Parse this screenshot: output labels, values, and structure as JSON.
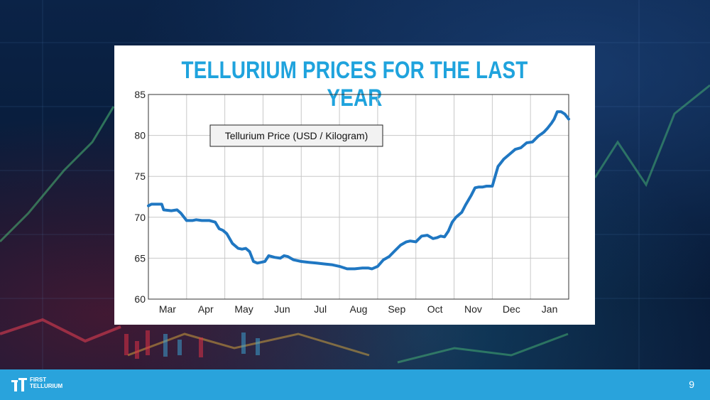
{
  "slide": {
    "title": "TELLURIUM PRICES FOR THE LAST YEAR",
    "page_number": "9",
    "logo": {
      "line1": "FIRST",
      "line2": "TELLURIUM"
    }
  },
  "colors": {
    "title": "#1fa3dd",
    "series": "#1f77c2",
    "footer": "#29a3dc",
    "grid": "#c8c8c8"
  },
  "chart_data": {
    "type": "line",
    "title": "",
    "xlabel": "",
    "ylabel": "",
    "ylim": [
      60,
      85
    ],
    "yticks": [
      60,
      65,
      70,
      75,
      80,
      85
    ],
    "xlim": [
      0,
      11
    ],
    "categories": [
      "Mar",
      "Apr",
      "May",
      "Jun",
      "Jul",
      "Aug",
      "Sep",
      "Oct",
      "Nov",
      "Dec",
      "Jan"
    ],
    "grid": true,
    "legend": {
      "position": "top-left",
      "entries": [
        "Tellurium Price (USD / Kilogram)"
      ]
    },
    "series": [
      {
        "name": "Tellurium Price (USD / Kilogram)",
        "x": [
          0.0,
          0.08,
          0.2,
          0.35,
          0.4,
          0.6,
          0.75,
          0.85,
          1.0,
          1.15,
          1.25,
          1.4,
          1.6,
          1.75,
          1.85,
          1.95,
          2.05,
          2.1,
          2.2,
          2.35,
          2.45,
          2.55,
          2.65,
          2.75,
          2.85,
          2.95,
          3.05,
          3.15,
          3.3,
          3.45,
          3.55,
          3.65,
          3.8,
          4.0,
          4.2,
          4.4,
          4.6,
          4.8,
          5.0,
          5.2,
          5.4,
          5.6,
          5.75,
          5.85,
          6.0,
          6.15,
          6.3,
          6.45,
          6.6,
          6.75,
          6.85,
          7.0,
          7.15,
          7.3,
          7.45,
          7.55,
          7.65,
          7.75,
          7.85,
          7.95,
          8.05,
          8.2,
          8.3,
          8.45,
          8.55,
          8.65,
          8.75,
          8.85,
          9.0,
          9.15,
          9.3,
          9.45,
          9.6,
          9.75,
          9.9,
          10.05,
          10.2,
          10.35,
          10.45,
          10.55,
          10.62,
          10.7,
          10.8,
          10.9,
          11.0
        ],
        "values": [
          71.4,
          71.6,
          71.6,
          71.6,
          70.9,
          70.8,
          70.9,
          70.5,
          69.6,
          69.6,
          69.7,
          69.6,
          69.6,
          69.4,
          68.6,
          68.4,
          68.0,
          67.6,
          66.8,
          66.2,
          66.1,
          66.2,
          65.8,
          64.6,
          64.4,
          64.5,
          64.6,
          65.3,
          65.1,
          65.0,
          65.3,
          65.2,
          64.8,
          64.6,
          64.5,
          64.4,
          64.3,
          64.2,
          64.0,
          63.7,
          63.7,
          63.8,
          63.8,
          63.7,
          64.0,
          64.8,
          65.2,
          65.9,
          66.6,
          67.0,
          67.1,
          67.0,
          67.7,
          67.8,
          67.4,
          67.5,
          67.7,
          67.6,
          68.3,
          69.4,
          70.0,
          70.6,
          71.5,
          72.7,
          73.6,
          73.7,
          73.7,
          73.8,
          73.8,
          76.2,
          77.1,
          77.7,
          78.3,
          78.5,
          79.1,
          79.2,
          79.9,
          80.4,
          80.9,
          81.5,
          82.0,
          82.9,
          82.9,
          82.6,
          82.0
        ]
      }
    ]
  }
}
